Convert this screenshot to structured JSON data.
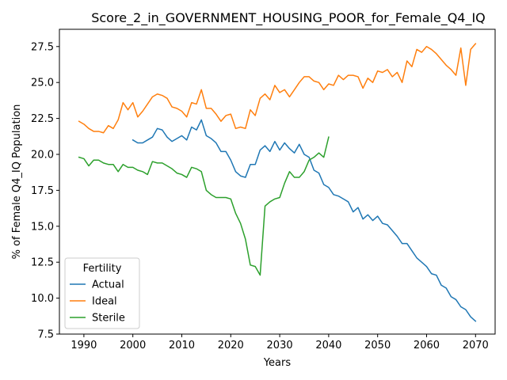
{
  "chart_data": {
    "type": "line",
    "title": "Score_2_in_GOVERNMENT_HOUSING_POOR_for_Female_Q4_IQ",
    "xlabel": "Years",
    "ylabel": "% of Female Q4_IQ Population",
    "xlim": [
      1985,
      2074
    ],
    "ylim": [
      7.5,
      28.7
    ],
    "xticks": [
      1990,
      2000,
      2010,
      2020,
      2030,
      2040,
      2050,
      2060,
      2070
    ],
    "yticks": [
      7.5,
      10.0,
      12.5,
      15.0,
      17.5,
      20.0,
      22.5,
      25.0,
      27.5
    ],
    "xtick_labels": [
      "1990",
      "2000",
      "2010",
      "2020",
      "2030",
      "2040",
      "2050",
      "2060",
      "2070"
    ],
    "ytick_labels": [
      "7.5",
      "10.0",
      "12.5",
      "15.0",
      "17.5",
      "20.0",
      "22.5",
      "25.0",
      "27.5"
    ],
    "grid": false,
    "legend": {
      "title": "Fertility",
      "placement": "lower-left"
    },
    "series": [
      {
        "name": "Actual",
        "color": "#1f77b4",
        "x": [
          2000,
          2001,
          2002,
          2003,
          2004,
          2005,
          2006,
          2007,
          2008,
          2009,
          2010,
          2011,
          2012,
          2013,
          2014,
          2015,
          2016,
          2017,
          2018,
          2019,
          2020,
          2021,
          2022,
          2023,
          2024,
          2025,
          2026,
          2027,
          2028,
          2029,
          2030,
          2031,
          2032,
          2033,
          2034,
          2035,
          2036,
          2037,
          2038,
          2039,
          2040,
          2041,
          2042,
          2043,
          2044,
          2045,
          2046,
          2047,
          2048,
          2049,
          2050,
          2051,
          2052,
          2053,
          2054,
          2055,
          2056,
          2057,
          2058,
          2059,
          2060,
          2061,
          2062,
          2063,
          2064,
          2065,
          2066,
          2067,
          2068,
          2069,
          2070
        ],
        "y": [
          21.0,
          20.8,
          20.8,
          21.0,
          21.2,
          21.8,
          21.7,
          21.2,
          20.9,
          21.1,
          21.3,
          21.0,
          21.9,
          21.7,
          22.4,
          21.3,
          21.1,
          20.8,
          20.2,
          20.2,
          19.6,
          18.8,
          18.5,
          18.4,
          19.3,
          19.3,
          20.3,
          20.6,
          20.2,
          20.9,
          20.3,
          20.8,
          20.4,
          20.1,
          20.7,
          20.0,
          19.8,
          18.9,
          18.7,
          17.9,
          17.7,
          17.2,
          17.1,
          16.9,
          16.7,
          16.0,
          16.3,
          15.5,
          15.8,
          15.4,
          15.7,
          15.2,
          15.1,
          14.7,
          14.3,
          13.8,
          13.8,
          13.3,
          12.8,
          12.5,
          12.2,
          11.7,
          11.6,
          10.9,
          10.7,
          10.1,
          9.9,
          9.4,
          9.2,
          8.7,
          8.4
        ]
      },
      {
        "name": "Ideal",
        "color": "#ff7f0e",
        "x": [
          1989,
          1990,
          1991,
          1992,
          1993,
          1994,
          1995,
          1996,
          1997,
          1998,
          1999,
          2000,
          2001,
          2002,
          2003,
          2004,
          2005,
          2006,
          2007,
          2008,
          2009,
          2010,
          2011,
          2012,
          2013,
          2014,
          2015,
          2016,
          2017,
          2018,
          2019,
          2020,
          2021,
          2022,
          2023,
          2024,
          2025,
          2026,
          2027,
          2028,
          2029,
          2030,
          2031,
          2032,
          2033,
          2034,
          2035,
          2036,
          2037,
          2038,
          2039,
          2040,
          2041,
          2042,
          2043,
          2044,
          2045,
          2046,
          2047,
          2048,
          2049,
          2050,
          2051,
          2052,
          2053,
          2054,
          2055,
          2056,
          2057,
          2058,
          2059,
          2060,
          2061,
          2062,
          2063,
          2064,
          2065,
          2066,
          2067,
          2068,
          2069,
          2070
        ],
        "y": [
          22.3,
          22.1,
          21.8,
          21.6,
          21.6,
          21.5,
          22.0,
          21.8,
          22.4,
          23.6,
          23.1,
          23.6,
          22.6,
          23.0,
          23.5,
          24.0,
          24.2,
          24.1,
          23.9,
          23.3,
          23.2,
          23.0,
          22.6,
          23.6,
          23.5,
          24.5,
          23.2,
          23.2,
          22.8,
          22.3,
          22.7,
          22.8,
          21.8,
          21.9,
          21.8,
          23.1,
          22.7,
          23.9,
          24.2,
          23.8,
          24.8,
          24.3,
          24.5,
          24.0,
          24.5,
          25.0,
          25.4,
          25.4,
          25.1,
          25.0,
          24.5,
          24.9,
          24.8,
          25.5,
          25.2,
          25.5,
          25.5,
          25.4,
          24.6,
          25.3,
          25.0,
          25.8,
          25.7,
          25.9,
          25.4,
          25.7,
          25.0,
          26.5,
          26.1,
          27.3,
          27.1,
          27.5,
          27.3,
          27.0,
          26.6,
          26.2,
          25.9,
          25.5,
          27.4,
          24.8,
          27.3,
          27.7
        ]
      },
      {
        "name": "Sterile",
        "color": "#2ca02c",
        "x": [
          1989,
          1990,
          1991,
          1992,
          1993,
          1994,
          1995,
          1996,
          1997,
          1998,
          1999,
          2000,
          2001,
          2002,
          2003,
          2004,
          2005,
          2006,
          2007,
          2008,
          2009,
          2010,
          2011,
          2012,
          2013,
          2014,
          2015,
          2016,
          2017,
          2018,
          2019,
          2020,
          2021,
          2022,
          2023,
          2024,
          2025,
          2026,
          2027,
          2028,
          2029,
          2030,
          2031,
          2032,
          2033,
          2034,
          2035,
          2036,
          2037,
          2038,
          2039,
          2040
        ],
        "y": [
          19.8,
          19.7,
          19.2,
          19.6,
          19.6,
          19.4,
          19.3,
          19.3,
          18.8,
          19.3,
          19.1,
          19.1,
          18.9,
          18.8,
          18.6,
          19.5,
          19.4,
          19.4,
          19.2,
          19.0,
          18.7,
          18.6,
          18.4,
          19.1,
          19.0,
          18.8,
          17.5,
          17.2,
          17.0,
          17.0,
          17.0,
          16.9,
          15.9,
          15.2,
          14.1,
          12.3,
          12.2,
          11.6,
          16.4,
          16.7,
          16.9,
          17.0,
          18.0,
          18.8,
          18.4,
          18.4,
          18.8,
          19.6,
          19.8,
          20.1,
          19.8,
          21.2
        ]
      }
    ]
  }
}
